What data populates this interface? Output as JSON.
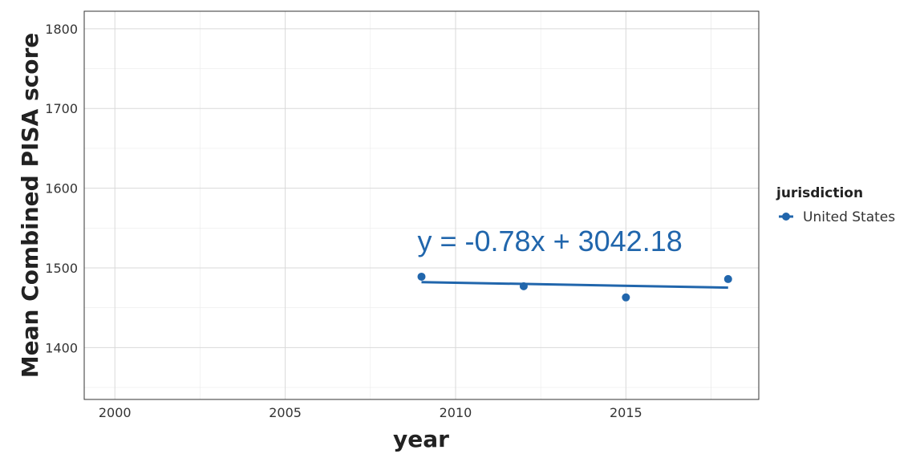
{
  "chart_data": {
    "type": "scatter",
    "xlabel": "year",
    "ylabel": "Mean Combined PISA score",
    "xlim": [
      1999.1,
      2018.9
    ],
    "ylim": [
      1335,
      1822
    ],
    "x_ticks": [
      2000,
      2005,
      2010,
      2015
    ],
    "y_ticks": [
      1400,
      1500,
      1600,
      1700,
      1800
    ],
    "grid": true,
    "legend": {
      "title": "jurisdiction",
      "placement": "right"
    },
    "series": [
      {
        "name": "United States",
        "color": "#2166ac",
        "x": [
          2009,
          2012,
          2015,
          2018
        ],
        "y": [
          1489,
          1477,
          1463,
          1486
        ]
      }
    ],
    "trendline": {
      "label": "y = -0.78x + 3042.18",
      "slope": -0.78,
      "intercept": 3042.18,
      "x_range": [
        2009,
        2018
      ],
      "color": "#2166ac"
    }
  }
}
